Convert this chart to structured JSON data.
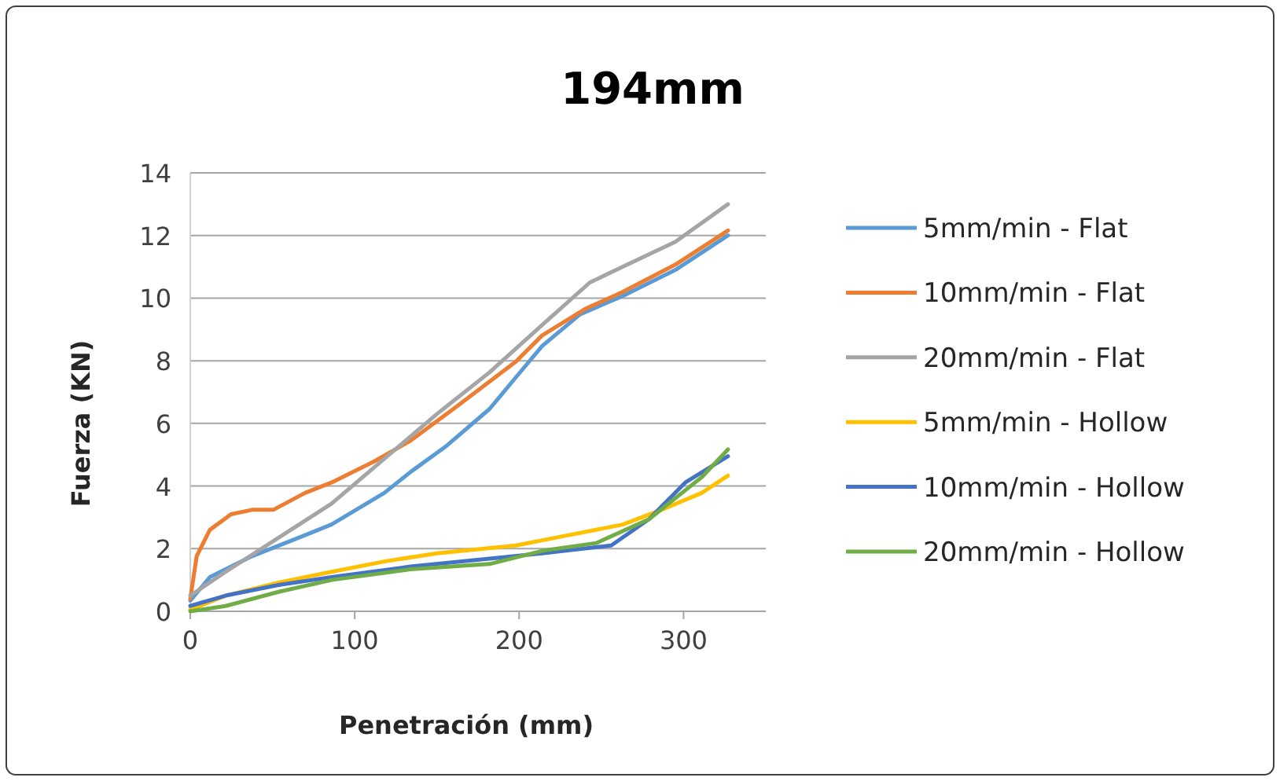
{
  "chart_data": {
    "type": "line",
    "title": "194mm",
    "xlabel": "Penetración (mm)",
    "ylabel": "Fuerza (KN)",
    "xlim": [
      0,
      350
    ],
    "xticks": [
      0,
      100,
      200,
      300
    ],
    "ylim": [
      0,
      14
    ],
    "yticks": [
      0,
      2,
      4,
      6,
      8,
      10,
      12,
      14
    ],
    "grid": "y",
    "legend": "right",
    "marker": "none",
    "line_style": "solid",
    "series": [
      {
        "name": "5mm/min - Flat",
        "color": "#5b9bd5",
        "x": [
          0,
          11.9,
          37.6,
          69.8,
          85.8,
          118,
          134,
          156,
          182,
          198,
          214,
          237,
          263,
          295,
          327
        ],
        "values": [
          0.34,
          1.09,
          1.76,
          2.43,
          2.77,
          3.78,
          4.45,
          5.29,
          6.46,
          7.47,
          8.47,
          9.48,
          10.07,
          10.9,
          12
        ]
      },
      {
        "name": "10mm/min - Flat",
        "color": "#ed7d31",
        "x": [
          0,
          3.9,
          11.9,
          24.8,
          37.6,
          50.5,
          69.8,
          85.8,
          111.6,
          134,
          160,
          198,
          214,
          240,
          263,
          295,
          327
        ],
        "values": [
          0.4,
          1.76,
          2.6,
          3.1,
          3.24,
          3.24,
          3.78,
          4.11,
          4.78,
          5.45,
          6.46,
          7.97,
          8.81,
          9.65,
          10.2,
          11.07,
          12.16
        ]
      },
      {
        "name": "20mm/min - Flat",
        "color": "#a5a5a5",
        "x": [
          0,
          21.5,
          53.7,
          86,
          118,
          150,
          182,
          214,
          243,
          263,
          295,
          327
        ],
        "values": [
          0.5,
          1.26,
          2.35,
          3.44,
          4.87,
          6.3,
          7.63,
          9.14,
          10.5,
          11,
          11.8,
          13
        ]
      },
      {
        "name": "5mm/min - Hollow",
        "color": "#ffc000",
        "x": [
          0,
          21.5,
          53.7,
          86,
          118,
          150,
          198,
          230,
          263,
          288,
          311,
          327
        ],
        "values": [
          0.05,
          0.5,
          0.92,
          1.26,
          1.59,
          1.85,
          2.1,
          2.43,
          2.77,
          3.27,
          3.78,
          4.33
        ]
      },
      {
        "name": "10mm/min - Hollow",
        "color": "#4472c4",
        "x": [
          0,
          21.5,
          53.7,
          86,
          134,
          182,
          214,
          256,
          279,
          301,
          327
        ],
        "values": [
          0.17,
          0.5,
          0.84,
          1.09,
          1.43,
          1.68,
          1.85,
          2.1,
          2.94,
          4.11,
          4.95
        ]
      },
      {
        "name": "20mm/min - Hollow",
        "color": "#70ad47",
        "x": [
          0,
          21.5,
          53.7,
          86,
          134,
          182,
          214,
          247,
          279,
          311,
          327
        ],
        "values": [
          0,
          0.17,
          0.62,
          1.0,
          1.34,
          1.51,
          1.93,
          2.18,
          2.94,
          4.28,
          5.17
        ]
      }
    ]
  }
}
